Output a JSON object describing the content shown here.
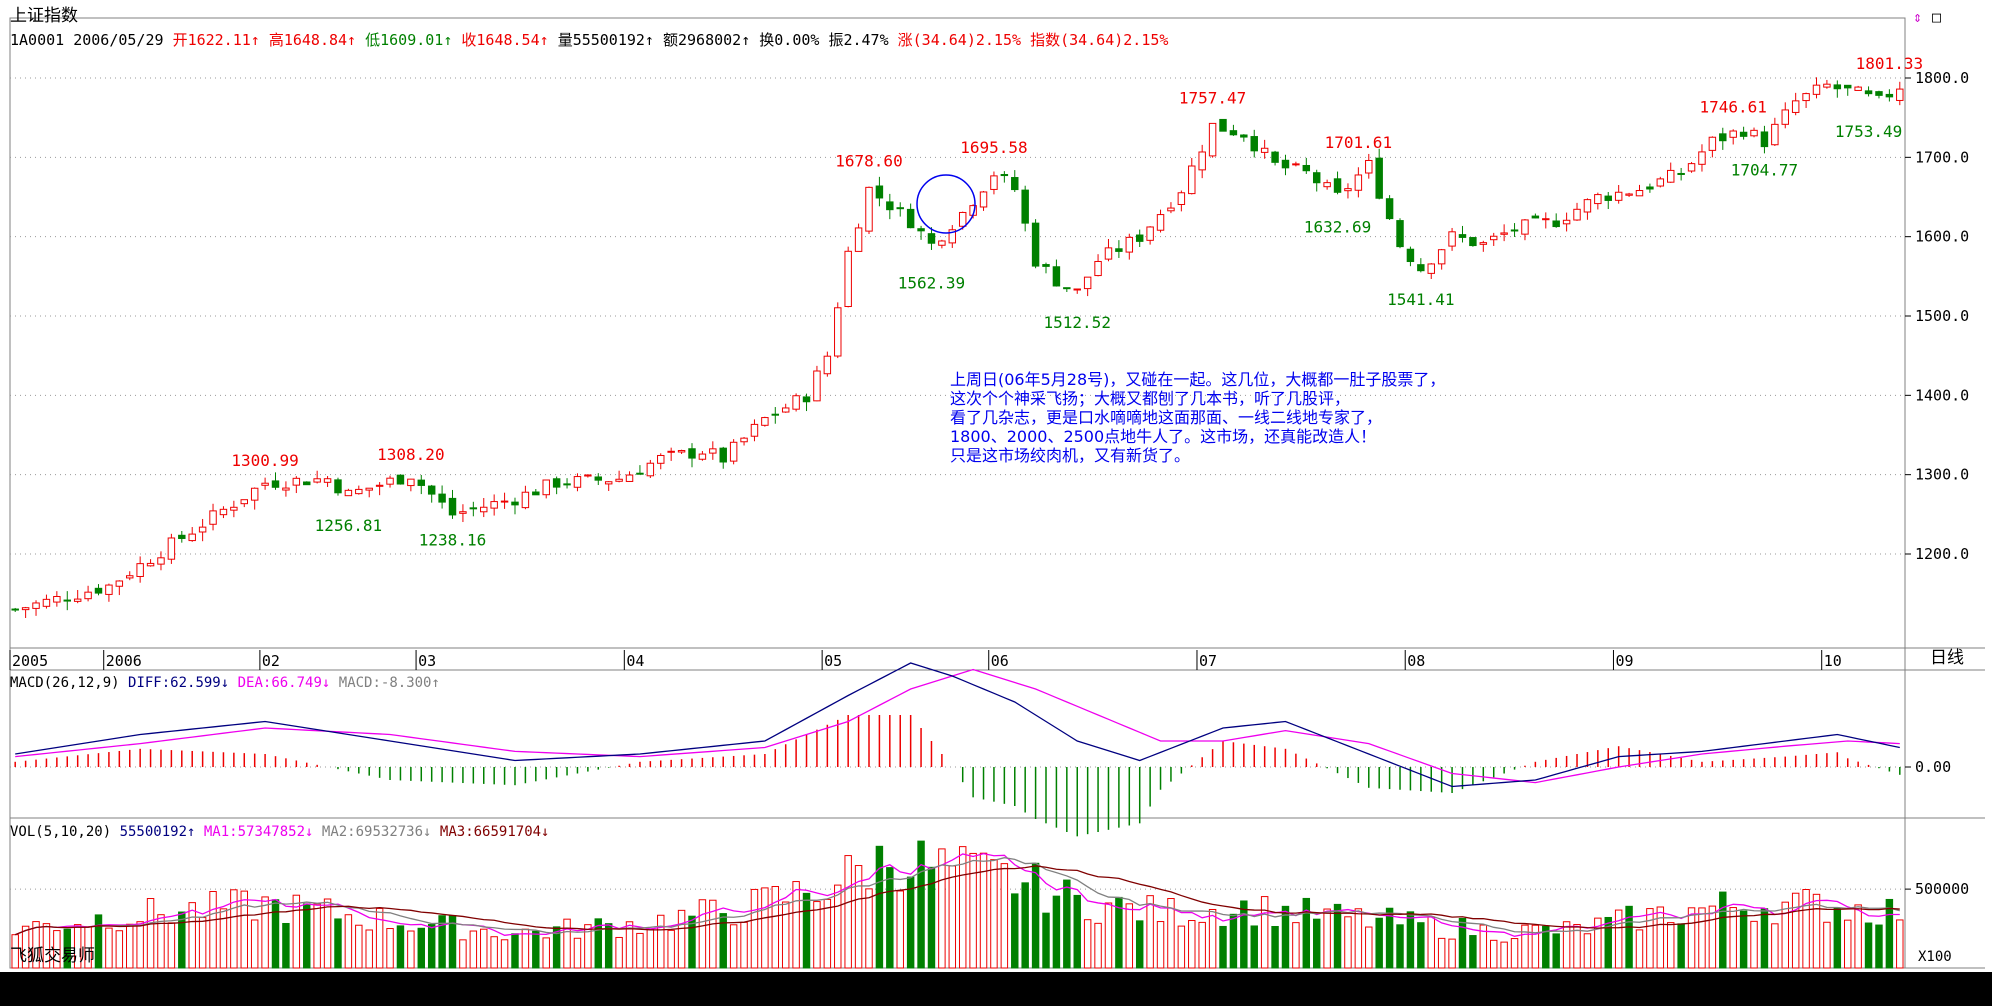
{
  "header": {
    "title": "上证指数",
    "code_date": "1A0001 2006/05/29 ",
    "open": "开1622.11↑",
    "high": "高1648.84↑",
    "low": "低1609.01↑",
    "close": "收1648.54↑",
    "volume": "量55500192↑",
    "amount": "额2968002↑",
    "turnover": "换0.00% ",
    "amplitude": "振2.47% ",
    "change": "涨(34.64)2.15% ",
    "index_change": "指数(34.64)2.15%"
  },
  "annotation": {
    "text": "上周日(06年5月28号)，又碰在一起。这几位，大概都一肚子股票了，\n这次个个神采飞扬；大概又都刨了几本书，听了几股评，\n看了几杂志，更是口水嘀嘀地这面那面、一线二线地专家了，\n1800、2000、2500点地牛人了。这市场，还真能改造人！\n只是这市场绞肉机，又有新货了。"
  },
  "macd_legend": {
    "title": "MACD(26,12,9) ",
    "diff": "DIFF:62.599↓",
    "dea": "DEA:66.749↓",
    "macd": "MACD:-8.300↑"
  },
  "vol_legend": {
    "title": "VOL(5,10,20) ",
    "vol": "55500192↑",
    "ma1": "MA1:57347852↓",
    "ma2": "MA2:69532736↓",
    "ma3": "MA3:66591704↓"
  },
  "footer": {
    "period": "日线",
    "vol_multiplier": "X100",
    "brand": "飞狐交易师"
  },
  "colors": {
    "up": "#ee0000",
    "down": "#008000",
    "grid": "#9a9a9a",
    "diff": "#000080",
    "dea": "#ee00ee",
    "ma2": "#808080",
    "ma3": "#800000",
    "annotation": "#0000ee"
  },
  "chart_data": [
    {
      "type": "candlestick",
      "title": "上证指数",
      "y_ticks": [
        1200,
        1300,
        1400,
        1500,
        1600,
        1700,
        1800
      ],
      "y_tick_labels": [
        "1200.0",
        "1300.0",
        "1400.0",
        "1500.0",
        "1600.0",
        "1700.0",
        "1800.0"
      ],
      "ylim": [
        1100,
        1835
      ],
      "x_tick_labels": [
        "2005",
        "2006",
        "02",
        "03",
        "04",
        "05",
        "06",
        "07",
        "08",
        "09",
        "10"
      ],
      "x_tick_positions": [
        0,
        9,
        24,
        39,
        59,
        78,
        94,
        114,
        134,
        154,
        174
      ],
      "bar_count": 182,
      "grid": true,
      "annotations": [
        {
          "label": "1300.99",
          "index": 24,
          "value": 1300.99,
          "kind": "high"
        },
        {
          "label": "1256.81",
          "index": 32,
          "value": 1256.81,
          "kind": "low"
        },
        {
          "label": "1308.20",
          "index": 38,
          "value": 1308.2,
          "kind": "high"
        },
        {
          "label": "1238.16",
          "index": 42,
          "value": 1238.16,
          "kind": "low"
        },
        {
          "label": "1678.60",
          "index": 82,
          "value": 1678.6,
          "kind": "high"
        },
        {
          "label": "1562.39",
          "index": 88,
          "value": 1562.39,
          "kind": "low"
        },
        {
          "label": "1695.58",
          "index": 94,
          "value": 1695.58,
          "kind": "high"
        },
        {
          "label": "1512.52",
          "index": 102,
          "value": 1512.52,
          "kind": "low"
        },
        {
          "label": "1757.47",
          "index": 115,
          "value": 1757.47,
          "kind": "high"
        },
        {
          "label": "1632.69",
          "index": 127,
          "value": 1632.69,
          "kind": "low"
        },
        {
          "label": "1701.61",
          "index": 129,
          "value": 1701.61,
          "kind": "high"
        },
        {
          "label": "1541.41",
          "index": 135,
          "value": 1541.41,
          "kind": "low"
        },
        {
          "label": "1746.61",
          "index": 165,
          "value": 1746.61,
          "kind": "high"
        },
        {
          "label": "1704.77",
          "index": 168,
          "value": 1704.77,
          "kind": "low"
        },
        {
          "label": "1801.33",
          "index": 180,
          "value": 1801.33,
          "kind": "high"
        },
        {
          "label": "1753.49",
          "index": 178,
          "value": 1753.49,
          "kind": "low"
        }
      ],
      "close_anchors": [
        [
          0,
          1130
        ],
        [
          9,
          1160
        ],
        [
          24,
          1290
        ],
        [
          30,
          1295
        ],
        [
          32,
          1275
        ],
        [
          38,
          1300
        ],
        [
          42,
          1250
        ],
        [
          48,
          1270
        ],
        [
          52,
          1290
        ],
        [
          58,
          1295
        ],
        [
          62,
          1320
        ],
        [
          66,
          1330
        ],
        [
          68,
          1320
        ],
        [
          72,
          1370
        ],
        [
          76,
          1400
        ],
        [
          78,
          1450
        ],
        [
          80,
          1580
        ],
        [
          82,
          1660
        ],
        [
          86,
          1620
        ],
        [
          88,
          1590
        ],
        [
          91,
          1630
        ],
        [
          94,
          1680
        ],
        [
          96,
          1660
        ],
        [
          98,
          1570
        ],
        [
          100,
          1545
        ],
        [
          102,
          1530
        ],
        [
          104,
          1570
        ],
        [
          108,
          1600
        ],
        [
          112,
          1660
        ],
        [
          115,
          1740
        ],
        [
          118,
          1730
        ],
        [
          121,
          1690
        ],
        [
          124,
          1680
        ],
        [
          127,
          1650
        ],
        [
          130,
          1690
        ],
        [
          133,
          1590
        ],
        [
          135,
          1560
        ],
        [
          138,
          1600
        ],
        [
          141,
          1590
        ],
        [
          144,
          1610
        ],
        [
          148,
          1620
        ],
        [
          152,
          1650
        ],
        [
          156,
          1660
        ],
        [
          160,
          1680
        ],
        [
          163,
          1720
        ],
        [
          166,
          1735
        ],
        [
          168,
          1720
        ],
        [
          171,
          1770
        ],
        [
          174,
          1790
        ],
        [
          177,
          1780
        ],
        [
          179,
          1770
        ],
        [
          181,
          1790
        ]
      ]
    },
    {
      "type": "line",
      "title": "MACD(26,12,9)",
      "series": [
        {
          "name": "DIFF",
          "color": "#000080"
        },
        {
          "name": "DEA",
          "color": "#ee00ee"
        },
        {
          "name": "MACD",
          "color": "#ee0000"
        }
      ],
      "y_tick_labels": [
        "0.00"
      ],
      "diff_anchors": [
        [
          0,
          10
        ],
        [
          12,
          25
        ],
        [
          24,
          35
        ],
        [
          36,
          20
        ],
        [
          48,
          5
        ],
        [
          60,
          10
        ],
        [
          72,
          20
        ],
        [
          80,
          55
        ],
        [
          86,
          80
        ],
        [
          90,
          70
        ],
        [
          96,
          50
        ],
        [
          102,
          20
        ],
        [
          108,
          5
        ],
        [
          116,
          30
        ],
        [
          122,
          35
        ],
        [
          130,
          10
        ],
        [
          138,
          -15
        ],
        [
          146,
          -10
        ],
        [
          154,
          8
        ],
        [
          162,
          12
        ],
        [
          170,
          20
        ],
        [
          175,
          25
        ],
        [
          181,
          15
        ]
      ],
      "dea_anchors": [
        [
          0,
          8
        ],
        [
          12,
          18
        ],
        [
          24,
          30
        ],
        [
          36,
          25
        ],
        [
          48,
          12
        ],
        [
          60,
          8
        ],
        [
          72,
          15
        ],
        [
          80,
          35
        ],
        [
          86,
          60
        ],
        [
          92,
          75
        ],
        [
          98,
          60
        ],
        [
          104,
          40
        ],
        [
          110,
          20
        ],
        [
          116,
          20
        ],
        [
          122,
          28
        ],
        [
          130,
          18
        ],
        [
          138,
          -5
        ],
        [
          146,
          -12
        ],
        [
          154,
          0
        ],
        [
          162,
          10
        ],
        [
          170,
          16
        ],
        [
          176,
          20
        ],
        [
          181,
          18
        ]
      ]
    },
    {
      "type": "bar",
      "title": "VOL(5,10,20)",
      "series": [
        {
          "name": "VOL",
          "color": "#ee0000"
        },
        {
          "name": "MA1",
          "color": "#ee00ee"
        },
        {
          "name": "MA2",
          "color": "#808080"
        },
        {
          "name": "MA3",
          "color": "#800000"
        }
      ],
      "y_tick_labels": [
        "500000"
      ],
      "ylim": [
        0,
        900000
      ],
      "vol_anchors": [
        [
          0,
          250000
        ],
        [
          10,
          330000
        ],
        [
          24,
          400000
        ],
        [
          36,
          300000
        ],
        [
          48,
          220000
        ],
        [
          60,
          280000
        ],
        [
          70,
          380000
        ],
        [
          78,
          520000
        ],
        [
          84,
          700000
        ],
        [
          90,
          620000
        ],
        [
          96,
          560000
        ],
        [
          102,
          420000
        ],
        [
          110,
          350000
        ],
        [
          118,
          380000
        ],
        [
          126,
          330000
        ],
        [
          134,
          280000
        ],
        [
          142,
          230000
        ],
        [
          150,
          240000
        ],
        [
          156,
          320000
        ],
        [
          164,
          390000
        ],
        [
          172,
          400000
        ],
        [
          181,
          360000
        ]
      ]
    }
  ]
}
